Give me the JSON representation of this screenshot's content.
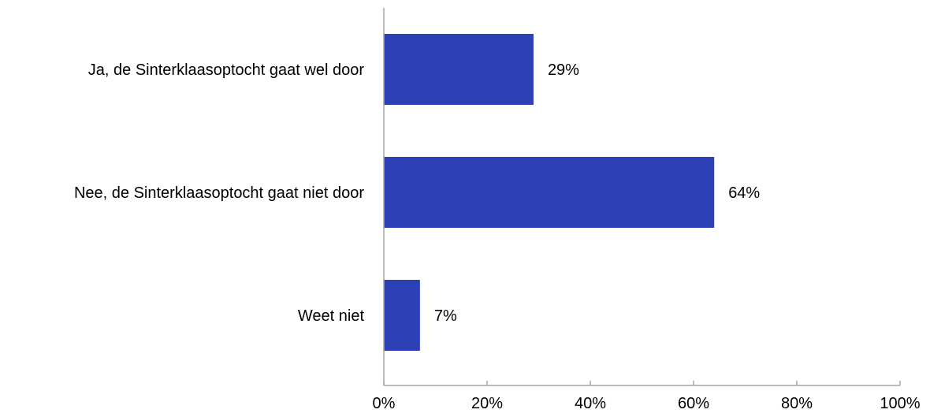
{
  "chart_data": {
    "type": "bar",
    "orientation": "horizontal",
    "categories": [
      "Ja, de Sinterklaasoptocht gaat wel door",
      "Nee, de Sinterklaasoptocht gaat niet door",
      "Weet niet"
    ],
    "values": [
      29,
      64,
      7
    ],
    "value_labels": [
      "29%",
      "64%",
      "7%"
    ],
    "xlim": [
      0,
      100
    ],
    "x_ticks": [
      0,
      20,
      40,
      60,
      80,
      100
    ],
    "x_tick_labels": [
      "0%",
      "20%",
      "40%",
      "60%",
      "80%",
      "100%"
    ],
    "title": "",
    "xlabel": "",
    "ylabel": "",
    "grid": false,
    "legend": "none",
    "bar_color": "#2E40B5",
    "axis_color": "#A6A6A6"
  }
}
